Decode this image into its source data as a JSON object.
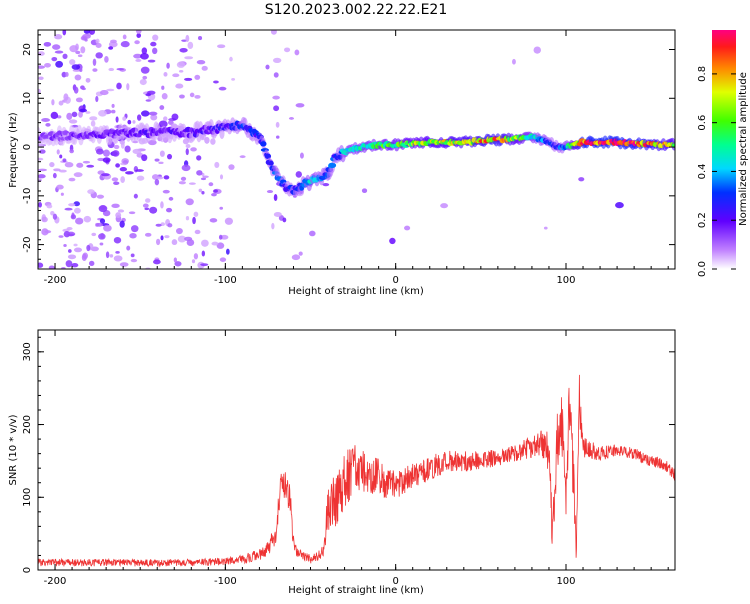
{
  "title": "S120.2023.002.22.22.E21",
  "chart_data": [
    {
      "type": "heatmap",
      "xlabel": "Height of straight line (km)",
      "ylabel": "Frequency (Hz)",
      "xlim": [
        -210,
        164
      ],
      "ylim": [
        -25,
        24
      ],
      "x_ticks": [
        "-200",
        "-100",
        "0",
        "100"
      ],
      "x_tick_values": [
        -200,
        -100,
        0,
        100
      ],
      "y_ticks": [
        "-20",
        "-10",
        "0",
        "10",
        "20"
      ],
      "y_tick_values": [
        -20,
        -10,
        0,
        10,
        20
      ],
      "colorbar": {
        "label": "Normalized spectral amplitude",
        "ticks": [
          "0.0",
          "0.2",
          "0.4",
          "0.6",
          "0.8"
        ],
        "tick_values": [
          0.0,
          0.2,
          0.4,
          0.6,
          0.8
        ],
        "range": [
          0,
          0.98
        ]
      },
      "ridge": {
        "x": [
          -210,
          -180,
          -150,
          -120,
          -100,
          -90,
          -80,
          -75,
          -70,
          -65,
          -60,
          -55,
          -50,
          -45,
          -40,
          -35,
          -30,
          -20,
          -10,
          0,
          20,
          40,
          60,
          80,
          90,
          95,
          100,
          110,
          130,
          150,
          164
        ],
        "y": [
          2,
          2.5,
          3,
          3,
          4,
          4.5,
          2,
          -2,
          -6,
          -8,
          -9,
          -8,
          -7,
          -6.5,
          -5.5,
          -2,
          -1,
          0,
          0.5,
          0.5,
          1,
          1,
          1.5,
          2,
          1,
          0,
          0,
          1,
          1,
          0.5,
          0.5
        ],
        "peak_amplitude": [
          0.15,
          0.18,
          0.2,
          0.2,
          0.25,
          0.3,
          0.28,
          0.3,
          0.35,
          0.3,
          0.3,
          0.35,
          0.42,
          0.38,
          0.35,
          0.3,
          0.45,
          0.5,
          0.55,
          0.6,
          0.7,
          0.75,
          0.85,
          0.5,
          0.35,
          0.3,
          0.4,
          0.95,
          0.98,
          0.85,
          0.7
        ]
      }
    },
    {
      "type": "line",
      "xlabel": "Height of straight line (km)",
      "ylabel": "SNR (10 * v/v)",
      "xlim": [
        -210,
        164
      ],
      "ylim": [
        0,
        330
      ],
      "x_ticks": [
        "-200",
        "-100",
        "0",
        "100"
      ],
      "x_tick_values": [
        -200,
        -100,
        0,
        100
      ],
      "y_ticks": [
        "0",
        "100",
        "200",
        "300"
      ],
      "y_tick_values": [
        0,
        100,
        200,
        300
      ],
      "series": [
        {
          "color": "#ee3333",
          "x": [
            -210,
            -180,
            -150,
            -120,
            -100,
            -90,
            -80,
            -75,
            -70,
            -68,
            -65,
            -62,
            -60,
            -58,
            -55,
            -50,
            -45,
            -42,
            -40,
            -38,
            -35,
            -32,
            -30,
            -25,
            -20,
            -15,
            -10,
            -5,
            0,
            10,
            20,
            30,
            40,
            50,
            60,
            70,
            80,
            85,
            90,
            92,
            95,
            98,
            100,
            102,
            105,
            106,
            108,
            110,
            120,
            130,
            140,
            150,
            158,
            164
          ],
          "y": [
            10,
            10,
            10,
            10,
            12,
            15,
            20,
            30,
            50,
            110,
            120,
            95,
            40,
            25,
            20,
            15,
            20,
            30,
            80,
            90,
            100,
            110,
            120,
            140,
            135,
            130,
            130,
            120,
            115,
            130,
            140,
            150,
            150,
            150,
            155,
            160,
            170,
            175,
            165,
            50,
            180,
            200,
            110,
            220,
            90,
            20,
            240,
            170,
            160,
            165,
            160,
            150,
            145,
            130
          ],
          "noise_amplitude": [
            5,
            5,
            5,
            5,
            5,
            6,
            8,
            10,
            15,
            20,
            20,
            20,
            10,
            6,
            6,
            6,
            8,
            10,
            30,
            35,
            40,
            40,
            40,
            35,
            30,
            28,
            25,
            25,
            20,
            18,
            18,
            15,
            15,
            12,
            12,
            12,
            15,
            18,
            30,
            30,
            40,
            45,
            40,
            50,
            40,
            10,
            45,
            15,
            10,
            8,
            8,
            8,
            8,
            8
          ]
        }
      ]
    }
  ]
}
